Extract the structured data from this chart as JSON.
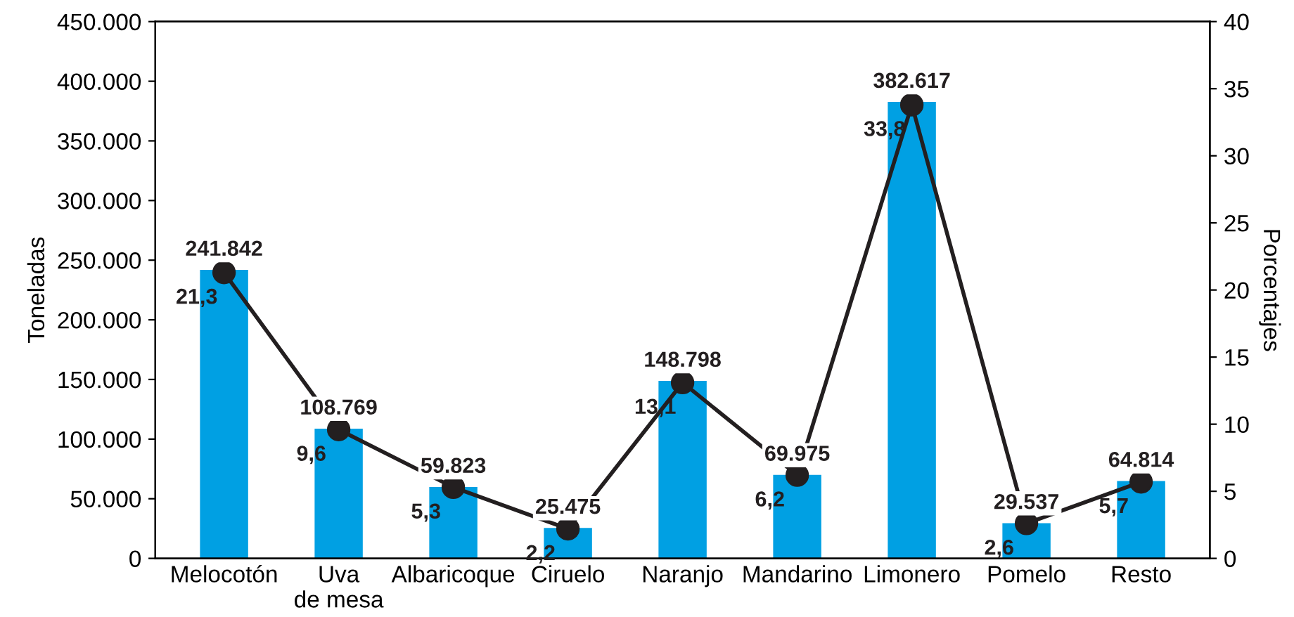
{
  "chart_data": {
    "type": "bar",
    "ylabel": "Toneladas",
    "y2label": "Porcentajes",
    "categories": [
      "Melocotón",
      "Uva\nde mesa",
      "Albaricoque",
      "Ciruelo",
      "Naranjo",
      "Mandarino",
      "Limonero",
      "Pomelo",
      "Resto"
    ],
    "series": [
      {
        "color": "#00a0e3",
        "values": [
          241842,
          108769,
          59823,
          25475,
          148798,
          69975,
          382617,
          29537,
          64814
        ],
        "value_labels": [
          "241.842",
          "108.769",
          "59.823",
          "25.475",
          "148.798",
          "69.975",
          "382.617",
          "29.537",
          "64.814"
        ]
      },
      {
        "type": "line",
        "axis": "y2",
        "color": "#231f20",
        "marker": "circle",
        "values": [
          21.3,
          9.6,
          5.3,
          2.2,
          13.1,
          6.2,
          33.8,
          2.6,
          5.7
        ],
        "value_labels": [
          "21,3",
          "9,6",
          "5,3",
          "2,2",
          "13,1",
          "6,2",
          "33,8",
          "2,6",
          "5,7"
        ]
      }
    ],
    "ylim": [
      0,
      450000
    ],
    "yticks": [
      0,
      {
        "value": 50000,
        "label": "50.000"
      },
      {
        "value": 100000,
        "label": "100.000"
      },
      {
        "value": 150000,
        "label": "150.000"
      },
      {
        "value": 200000,
        "label": "200.000"
      },
      {
        "value": 250000,
        "label": "250.000"
      },
      {
        "value": 300000,
        "label": "300.000"
      },
      {
        "value": 350000,
        "label": "350.000"
      },
      {
        "value": 400000,
        "label": "400.000"
      },
      {
        "value": 450000,
        "label": "450.000"
      }
    ],
    "y2lim": [
      0,
      40
    ],
    "y2ticks": [
      0,
      5,
      10,
      15,
      20,
      25,
      30,
      35,
      40
    ],
    "grid": false
  }
}
